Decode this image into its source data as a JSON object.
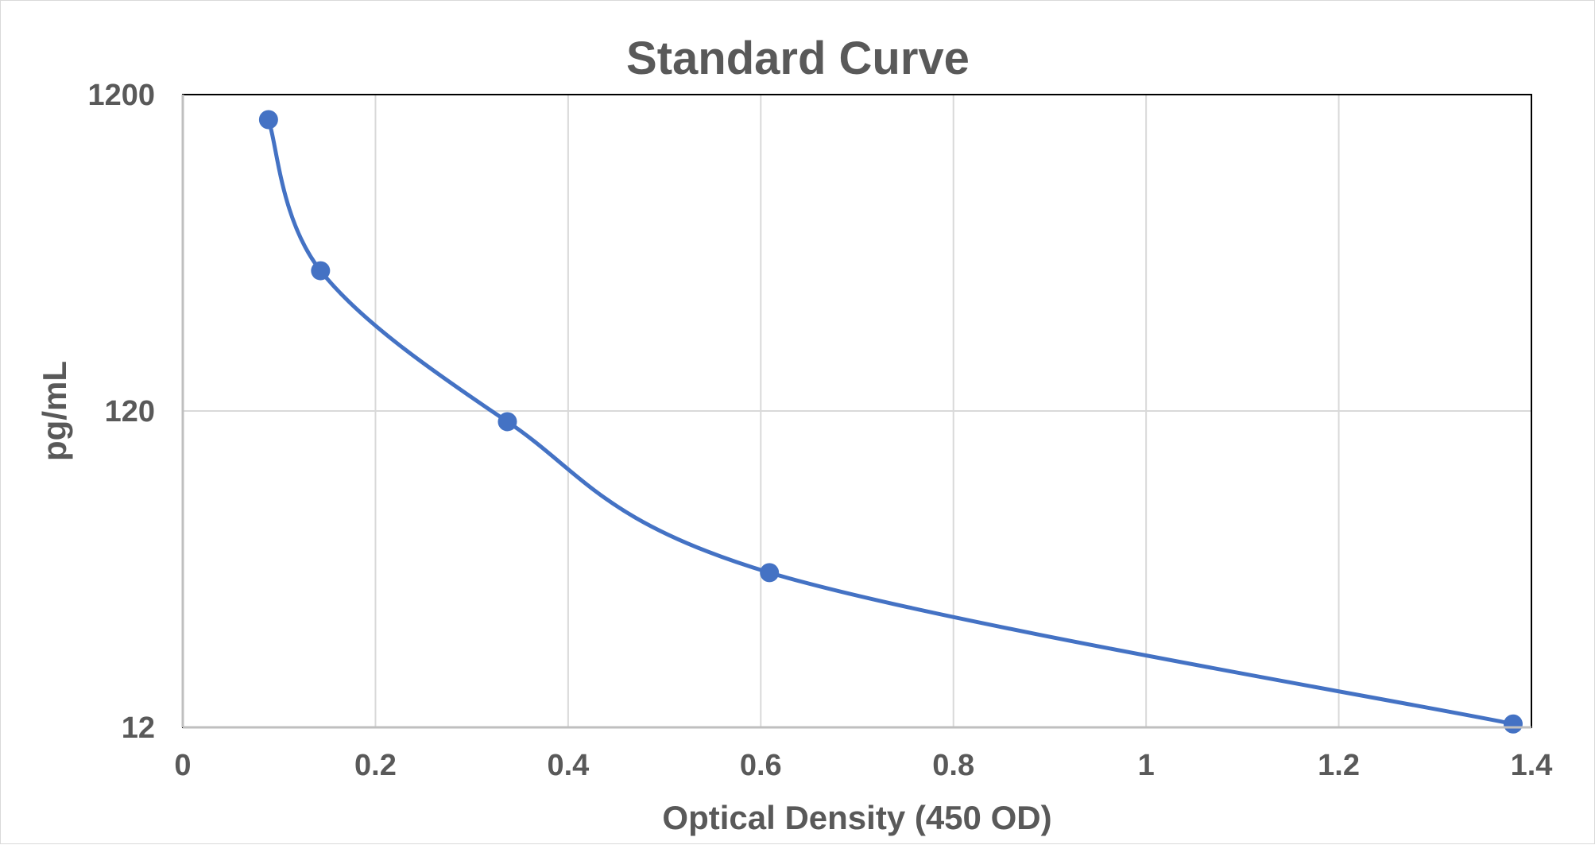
{
  "chart_data": {
    "type": "scatter",
    "title": "Standard Curve",
    "xlabel": "Optical Density (450 OD)",
    "ylabel": "pg/mL",
    "x_scale": "linear",
    "y_scale": "log",
    "xlim": [
      0,
      1.4
    ],
    "ylim": [
      12,
      1200
    ],
    "x_ticks": [
      0,
      0.2,
      0.4,
      0.6,
      0.8,
      1,
      1.2,
      1.4
    ],
    "x_tick_labels": [
      "0",
      "0.2",
      "0.4",
      "0.6",
      "0.8",
      "1",
      "1.2",
      "1.4"
    ],
    "y_ticks": [
      12,
      120,
      1200
    ],
    "y_tick_labels": [
      "12",
      "120",
      "1200"
    ],
    "grid": true,
    "line_style": "smooth",
    "series": [
      {
        "color": "#4472c4",
        "x": [
          0.089,
          0.143,
          0.337,
          0.609,
          1.381
        ],
        "y": [
          1000,
          333,
          111,
          37,
          12.3
        ]
      }
    ]
  }
}
